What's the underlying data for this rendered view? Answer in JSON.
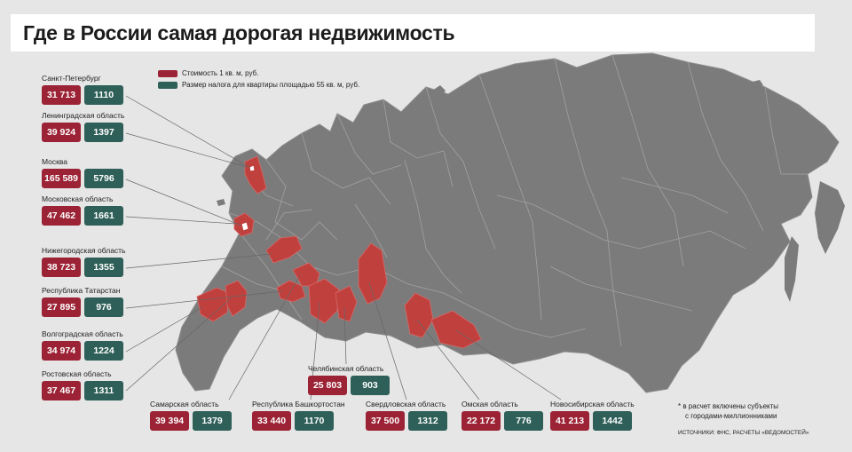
{
  "title": "Где в России самая дорогая недвижимость",
  "legend": {
    "price_label": "Стоимость 1 кв. м, руб.",
    "tax_label": "Размер налога для квартиры площадью 55 кв. м, руб.",
    "price_color": "#9b2335",
    "tax_color": "#2e5f58"
  },
  "regions": [
    {
      "id": "spb",
      "name": "Санкт-Петербург",
      "price": "31 713",
      "tax": "1110"
    },
    {
      "id": "lenobl",
      "name": "Ленинградская область",
      "price": "39 924",
      "tax": "1397"
    },
    {
      "id": "moscow",
      "name": "Москва",
      "price": "165 589",
      "tax": "5796"
    },
    {
      "id": "mosobl",
      "name": "Московская область",
      "price": "47 462",
      "tax": "1661"
    },
    {
      "id": "nizhny",
      "name": "Нижегородская область",
      "price": "38 723",
      "tax": "1355"
    },
    {
      "id": "tatarstan",
      "name": "Республика Татарстан",
      "price": "27 895",
      "tax": "976"
    },
    {
      "id": "volgograd",
      "name": "Волгоградская область",
      "price": "34 974",
      "tax": "1224"
    },
    {
      "id": "rostov",
      "name": "Ростовская область",
      "price": "37 467",
      "tax": "1311"
    },
    {
      "id": "samara",
      "name": "Самарская область",
      "price": "39 394",
      "tax": "1379"
    },
    {
      "id": "bashkortostan",
      "name": "Республика Башкортостан",
      "price": "33 440",
      "tax": "1170"
    },
    {
      "id": "chelyabinsk",
      "name": "Челябинская область",
      "price": "25 803",
      "tax": "903"
    },
    {
      "id": "sverdlovsk",
      "name": "Свердловская область",
      "price": "37 500",
      "tax": "1312"
    },
    {
      "id": "omsk",
      "name": "Омская область",
      "price": "22 172",
      "tax": "776"
    },
    {
      "id": "novosibirsk",
      "name": "Новосибирская область",
      "price": "41 213",
      "tax": "1442"
    }
  ],
  "footnote_line1": "* в расчет включены субъекты",
  "footnote_line2": "с городами-миллионниками",
  "source": "ИСТОЧНИКИ: ФНС, РАСЧЕТЫ «ВЕДОМОСТЕЙ»",
  "colors": {
    "land": "#7b7b7b",
    "border": "#a2a2a2",
    "highlight": "#c0403e",
    "water": "#e6e6e6",
    "leader": "#666666"
  }
}
